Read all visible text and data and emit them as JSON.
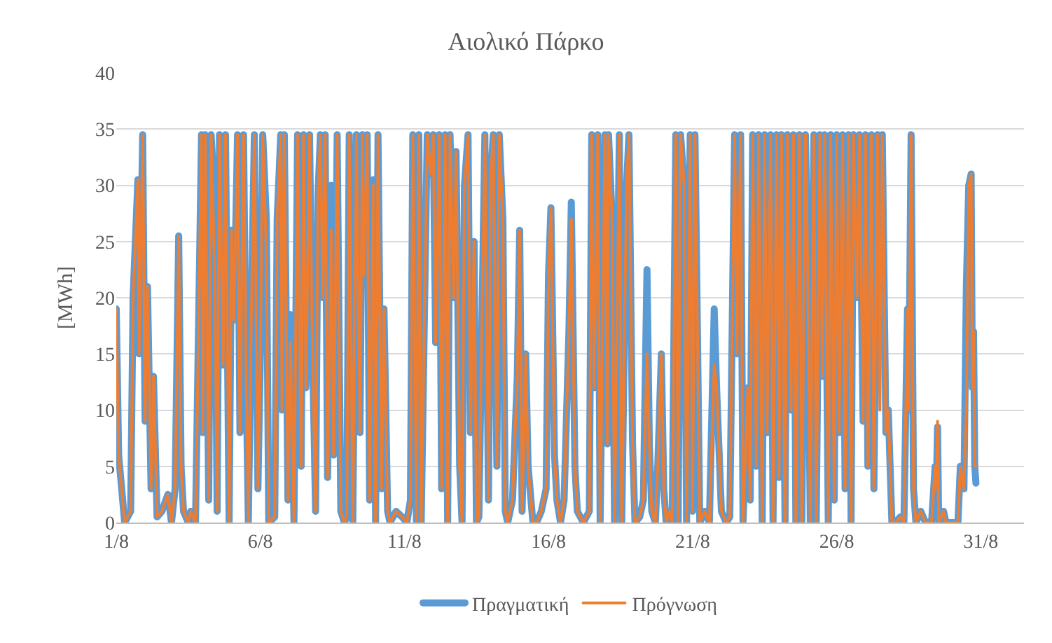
{
  "chart_data": {
    "type": "line",
    "title": "Αιολικό Πάρκο",
    "ylabel": "[MWh]",
    "x": [
      "--08-01T00:00",
      "--08-01T02:00",
      "--08-01T07:00",
      "--08-01T12:00",
      "--08-01T14:00",
      "--08-01T18:00",
      "--08-01T19:00",
      "--08-01T22:00",
      "--08-02T00:00",
      "--08-02T02:00",
      "--08-02T05:00",
      "--08-02T07:00",
      "--08-02T10:00",
      "--08-02T14:00",
      "--08-02T19:00",
      "--08-02T22:00",
      "--08-03T01:00",
      "--08-03T04:00",
      "--08-03T06:00",
      "--08-03T08:00",
      "--08-03T12:00",
      "--08-03T14:00",
      "--08-03T18:00",
      "--08-03T23:00",
      "--08-04T00:00",
      "--08-04T02:00",
      "--08-04T05:00",
      "--08-04T07:00",
      "--08-04T10:00",
      "--08-04T12:00",
      "--08-04T14:00",
      "--08-04T17:00",
      "--08-04T19:00",
      "--08-04T22:00",
      "--08-05T00:00",
      "--08-05T02:00",
      "--08-05T05:00",
      "--08-05T07:00",
      "--08-05T10:00",
      "--08-05T12:00",
      "--08-05T14:00",
      "--08-05T17:00",
      "--08-05T19:00",
      "--08-05T22:00",
      "--08-06T00:00",
      "--08-06T02:00",
      "--08-06T05:00",
      "--08-06T07:00",
      "--08-06T12:00",
      "--08-06T14:00",
      "--08-06T17:00",
      "--08-06T18:00",
      "--08-06T20:00",
      "--08-06T23:00",
      "--08-07T01:00",
      "--08-07T04:00",
      "--08-07T07:00",
      "--08-07T10:00",
      "--08-07T12:00",
      "--08-07T14:00",
      "--08-07T17:00",
      "--08-07T19:00",
      "--08-07T22:00",
      "--08-08T00:00",
      "--08-08T02:00",
      "--08-08T04:00",
      "--08-08T06:00",
      "--08-08T08:00",
      "--08-08T11:00",
      "--08-08T13:00",
      "--08-08T16:00",
      "--08-08T19:00",
      "--08-08T22:00",
      "--08-09T00:00",
      "--08-09T02:00",
      "--08-09T05:00",
      "--08-09T08:00",
      "--08-09T11:00",
      "--08-09T13:00",
      "--08-09T14:00",
      "--08-09T17:00",
      "--08-09T19:00",
      "--08-09T22:00",
      "--08-10T00:00",
      "--08-10T02:00",
      "--08-10T05:00",
      "--08-10T07:00",
      "--08-10T10:00",
      "--08-10T12:00",
      "--08-10T17:00",
      "--08-10T22:00",
      "--08-11T02:00",
      "--08-11T05:00",
      "--08-11T07:00",
      "--08-11T10:00",
      "--08-11T12:00",
      "--08-11T14:00",
      "--08-11T19:00",
      "--08-11T22:00",
      "--08-12T00:00",
      "--08-12T02:00",
      "--08-12T05:00",
      "--08-12T07:00",
      "--08-12T10:00",
      "--08-12T12:00",
      "--08-12T14:00",
      "--08-12T17:00",
      "--08-12T19:00",
      "--08-12T22:00",
      "--08-13T00:00",
      "--08-13T02:00",
      "--08-13T05:00",
      "--08-13T07:00",
      "--08-13T10:00",
      "--08-13T12:00",
      "--08-13T14:00",
      "--08-13T19:00",
      "--08-13T22:00",
      "--08-14T00:00",
      "--08-14T02:00",
      "--08-14T05:00",
      "--08-14T07:00",
      "--08-14T10:00",
      "--08-14T12:00",
      "--08-14T14:00",
      "--08-14T18:00",
      "--08-14T22:00",
      "--08-15T00:00",
      "--08-15T02:00",
      "--08-15T05:00",
      "--08-15T07:00",
      "--08-15T11:00",
      "--08-15T14:00",
      "--08-15T18:00",
      "--08-15T22:00",
      "--08-16T00:00",
      "--08-16T02:00",
      "--08-16T05:00",
      "--08-16T07:00",
      "--08-16T10:00",
      "--08-16T13:00",
      "--08-16T17:00",
      "--08-16T19:00",
      "--08-16T22:00",
      "--08-17T00:00",
      "--08-17T05:00",
      "--08-17T10:00",
      "--08-17T12:00",
      "--08-17T14:00",
      "--08-17T17:00",
      "--08-17T19:00",
      "--08-17T23:00",
      "--08-18T01:00",
      "--08-18T02:00",
      "--08-18T05:00",
      "--08-18T07:00",
      "--08-18T11:00",
      "--08-18T13:00",
      "--08-18T17:00",
      "--08-18T19:00",
      "--08-18T22:00",
      "--08-19T00:00",
      "--08-19T04:00",
      "--08-19T07:00",
      "--08-19T10:00",
      "--08-19T12:00",
      "--08-19T14:00",
      "--08-19T17:00",
      "--08-19T19:00",
      "--08-19T22:00",
      "--08-20T00:00",
      "--08-20T02:00",
      "--08-20T05:00",
      "--08-20T07:00",
      "--08-20T10:00",
      "--08-20T12:00",
      "--08-20T14:00",
      "--08-20T17:00",
      "--08-20T19:00",
      "--08-20T22:00",
      "--08-21T00:00",
      "--08-21T02:00",
      "--08-21T06:00",
      "--08-21T10:00",
      "--08-21T14:00",
      "--08-21T18:00",
      "--08-21T20:00",
      "--08-22T00:00",
      "--08-22T04:00",
      "--08-22T07:00",
      "--08-22T11:00",
      "--08-22T13:00",
      "--08-22T16:00",
      "--08-22T18:00",
      "--08-22T22:00",
      "--08-23T00:00",
      "--08-23T02:00",
      "--08-23T05:00",
      "--08-23T07:00",
      "--08-23T10:00",
      "--08-23T12:00",
      "--08-23T14:00",
      "--08-23T17:00",
      "--08-23T19:00",
      "--08-23T22:00",
      "--08-24T00:00",
      "--08-24T02:00",
      "--08-24T05:00",
      "--08-24T07:00",
      "--08-24T10:00",
      "--08-24T12:00",
      "--08-24T14:00",
      "--08-24T17:00",
      "--08-24T19:00",
      "--08-24T22:00",
      "--08-25T00:00",
      "--08-25T02:00",
      "--08-25T05:00",
      "--08-25T07:00",
      "--08-25T10:00",
      "--08-25T12:00",
      "--08-25T14:00",
      "--08-25T17:00",
      "--08-25T19:00",
      "--08-25T22:00",
      "--08-26T00:00",
      "--08-26T02:00",
      "--08-26T05:00",
      "--08-26T07:00",
      "--08-26T10:00",
      "--08-26T12:00",
      "--08-26T14:00",
      "--08-26T17:00",
      "--08-26T19:00",
      "--08-26T22:00",
      "--08-27T00:00",
      "--08-27T02:00",
      "--08-27T05:00",
      "--08-27T07:00",
      "--08-27T10:00",
      "--08-27T12:00",
      "--08-27T14:00",
      "--08-27T17:00",
      "--08-27T19:00",
      "--08-27T22:00",
      "--08-28T01:00",
      "--08-28T05:00",
      "--08-28T08:00",
      "--08-28T11:00",
      "--08-28T12:00",
      "--08-28T14:00",
      "--08-28T16:00",
      "--08-28T18:00",
      "--08-28T22:00",
      "--08-29T02:00",
      "--08-29T07:00",
      "--08-29T10:00",
      "--08-29T11:00",
      "--08-29T12:00",
      "--08-29T13:00",
      "--08-29T17:00",
      "--08-29T19:00",
      "--08-30T00:00",
      "--08-30T05:00",
      "--08-30T07:00",
      "--08-30T10:00",
      "--08-30T12:00",
      "--08-30T14:00",
      "--08-30T16:00",
      "--08-30T17:00",
      "--08-30T18:00",
      "--08-30T19:00",
      "--08-30T20:00"
    ],
    "series": [
      {
        "name": "Πραγματική",
        "color": "#5b9bd5",
        "values": [
          19,
          6,
          0,
          1,
          20,
          30.5,
          15,
          34.5,
          9,
          21,
          3,
          13,
          0.5,
          1,
          2.5,
          0,
          3,
          25.5,
          5,
          1,
          0,
          1,
          0,
          34.5,
          8,
          34.5,
          2,
          34.5,
          29,
          1,
          34.5,
          14,
          34.5,
          0,
          26,
          18,
          34.5,
          8,
          34.5,
          14,
          0,
          22,
          34.5,
          3,
          15,
          34.5,
          27,
          0,
          0.5,
          27,
          34.5,
          10,
          34.5,
          2,
          18.5,
          0,
          34.5,
          5,
          34.5,
          12,
          34.5,
          18,
          1,
          29,
          34.5,
          20,
          34.5,
          4,
          30,
          6,
          34.5,
          1,
          0,
          0.5,
          34.5,
          0,
          34.5,
          8,
          34.5,
          22,
          34.5,
          2,
          30.5,
          0,
          34.5,
          3,
          19,
          1,
          0,
          1,
          0.5,
          0,
          2,
          34.5,
          0,
          34.5,
          0,
          34.5,
          31,
          34.5,
          16,
          34.5,
          3,
          34.5,
          0,
          34.5,
          20,
          33,
          5,
          0,
          30,
          34.5,
          8,
          25,
          0,
          0.5,
          34.5,
          2,
          31,
          34.5,
          5,
          34.5,
          27,
          1,
          0,
          2,
          13,
          26,
          1,
          15,
          5,
          0,
          0,
          1,
          3,
          22,
          28,
          6,
          2,
          0,
          2,
          17,
          28.5,
          5,
          1,
          0,
          1,
          34.5,
          12,
          34.5,
          0,
          34.5,
          7,
          34.5,
          27,
          0,
          34.5,
          0,
          30,
          34.5,
          7,
          0,
          0.5,
          2,
          22.5,
          7,
          1,
          0,
          5,
          15,
          3,
          0,
          1,
          0,
          34.5,
          0,
          34.5,
          30,
          0,
          34.5,
          1,
          34.5,
          0,
          1,
          0,
          19,
          12,
          1,
          0,
          0.5,
          34.5,
          15,
          34.5,
          0,
          12,
          2,
          34.5,
          5,
          34.5,
          0,
          34.5,
          8,
          34.5,
          0,
          34.5,
          4,
          34.5,
          0,
          34.5,
          10,
          34.5,
          0,
          34.5,
          0,
          34.5,
          22,
          0,
          34.5,
          0,
          34.5,
          13,
          34.5,
          0,
          34.5,
          2,
          34.5,
          8,
          34.5,
          3,
          34.5,
          0,
          34.5,
          20,
          34.5,
          9,
          34.5,
          5,
          34.5,
          3,
          34.5,
          32.5,
          34.5,
          8,
          10,
          0,
          0,
          0.5,
          0,
          19,
          10,
          34.5,
          3,
          0,
          1,
          0,
          0,
          5,
          3,
          8.5,
          0,
          1,
          0,
          0,
          0,
          5,
          3,
          21,
          30,
          31,
          12,
          17,
          5,
          3.5
        ]
      },
      {
        "name": "Πρόγνωση",
        "color": "#ed7d31",
        "values": [
          19,
          6,
          0,
          1,
          20,
          30.5,
          15,
          34.5,
          9,
          21,
          3,
          13,
          0.5,
          1,
          2.5,
          0,
          3,
          25.5,
          5,
          1,
          0,
          1,
          0,
          34.5,
          8,
          34.5,
          2,
          34.5,
          22,
          1,
          34.5,
          14,
          34.5,
          0,
          26,
          18,
          34.5,
          8,
          34.5,
          14,
          0,
          22,
          34.5,
          3,
          15,
          34.5,
          24,
          0,
          0.5,
          27,
          34.5,
          10,
          34.5,
          2,
          16,
          0,
          34.5,
          5,
          34.5,
          12,
          34.5,
          18,
          1,
          29,
          34.5,
          20,
          34.5,
          4,
          26,
          6,
          34.5,
          1,
          0,
          0.5,
          34.5,
          0,
          34.5,
          8,
          34.5,
          22,
          34.5,
          2,
          30,
          0,
          34.5,
          3,
          19,
          1,
          0,
          1,
          0.5,
          0,
          2,
          34.5,
          0,
          34.5,
          0,
          34.5,
          31,
          34.5,
          16,
          34.5,
          3,
          34.5,
          0,
          34.5,
          20,
          33,
          5,
          0,
          30,
          34.5,
          8,
          25,
          0,
          0.5,
          34.5,
          2,
          31,
          34.5,
          5,
          34.5,
          27,
          1,
          0,
          2,
          13,
          26,
          1,
          15,
          5,
          0,
          0,
          1,
          3,
          22,
          28,
          6,
          2,
          0,
          2,
          17,
          27,
          5,
          1,
          0,
          1,
          34.5,
          12,
          34.5,
          0,
          34.5,
          7,
          34.5,
          27,
          0,
          34.5,
          0,
          30,
          34.5,
          7,
          0,
          0.5,
          2,
          15,
          7,
          1,
          0,
          5,
          15,
          3,
          0,
          1,
          0,
          34.5,
          0,
          34.5,
          30,
          0,
          34.5,
          1,
          34.5,
          0,
          1,
          0,
          14,
          12,
          1,
          0,
          0.5,
          34.5,
          15,
          34.5,
          0,
          12,
          2,
          34.5,
          5,
          34.5,
          0,
          34.5,
          8,
          34.5,
          0,
          34.5,
          4,
          34.5,
          0,
          34.5,
          10,
          34.5,
          0,
          34.5,
          0,
          34.5,
          22,
          0,
          34.5,
          0,
          34.5,
          13,
          34.5,
          0,
          34.5,
          2,
          34.5,
          8,
          34.5,
          3,
          34.5,
          0,
          34.5,
          20,
          34.5,
          9,
          34.5,
          5,
          34.5,
          3,
          34.5,
          10,
          34.5,
          8,
          10,
          0,
          0,
          0.5,
          0,
          19,
          10,
          34.5,
          3,
          0,
          1,
          0,
          0,
          5,
          3,
          9,
          0,
          1,
          0,
          0,
          0,
          5,
          3,
          10,
          30,
          31,
          12,
          17,
          5,
          5
        ]
      }
    ],
    "xlim": [
      "--08-01",
      "--09-01T12:00"
    ],
    "xticks": [
      {
        "value": "--08-01",
        "label": "1/8"
      },
      {
        "value": "--08-06",
        "label": "6/8"
      },
      {
        "value": "--08-11",
        "label": "11/8"
      },
      {
        "value": "--08-16",
        "label": "16/8"
      },
      {
        "value": "--08-21",
        "label": "21/8"
      },
      {
        "value": "--08-26",
        "label": "26/8"
      },
      {
        "value": "--08-31",
        "label": "31/8"
      }
    ],
    "ylim": [
      0,
      40
    ],
    "yticks": [
      0,
      5,
      10,
      15,
      20,
      25,
      30,
      35,
      40
    ],
    "grid": "y",
    "legend": "bottom",
    "marker": "none",
    "line_style": "solid"
  }
}
